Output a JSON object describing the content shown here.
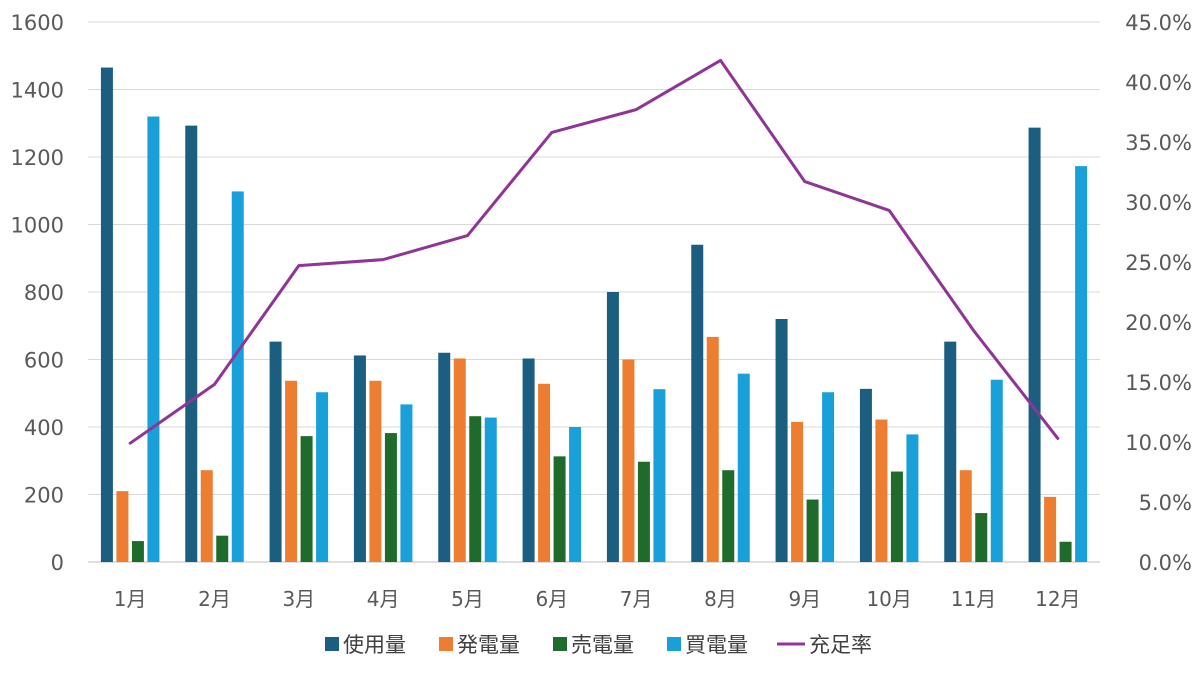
{
  "chart_data": {
    "type": "bar",
    "categories": [
      "1月",
      "2月",
      "3月",
      "4月",
      "5月",
      "6月",
      "7月",
      "8月",
      "9月",
      "10月",
      "11月",
      "12月"
    ],
    "series": [
      {
        "name": "使用量",
        "type": "bar",
        "axis": "left",
        "color": "#1B5E80",
        "values": [
          1465,
          1293,
          653,
          612,
          620,
          603,
          800,
          940,
          720,
          513,
          653,
          1287
        ]
      },
      {
        "name": "発電量",
        "type": "bar",
        "axis": "left",
        "color": "#ED7D31",
        "values": [
          210,
          272,
          537,
          537,
          603,
          528,
          600,
          667,
          415,
          422,
          272,
          193
        ]
      },
      {
        "name": "売電量",
        "type": "bar",
        "axis": "left",
        "color": "#1E6B2B",
        "values": [
          62,
          78,
          373,
          382,
          432,
          313,
          297,
          272,
          185,
          268,
          145,
          60
        ]
      },
      {
        "name": "買電量",
        "type": "bar",
        "axis": "left",
        "color": "#1AA0D8",
        "values": [
          1320,
          1098,
          503,
          467,
          428,
          400,
          512,
          558,
          503,
          378,
          540,
          1173
        ]
      },
      {
        "name": "充足率",
        "type": "line",
        "axis": "right",
        "color": "#8E3596",
        "values": [
          0.099,
          0.148,
          0.247,
          0.252,
          0.272,
          0.358,
          0.377,
          0.418,
          0.317,
          0.293,
          0.193,
          0.103
        ]
      }
    ],
    "left_axis": {
      "ylim": [
        0,
        1600
      ],
      "ticks": [
        "0",
        "200",
        "400",
        "600",
        "800",
        "1000",
        "1200",
        "1400",
        "1600"
      ]
    },
    "right_axis": {
      "ylim": [
        0,
        0.45
      ],
      "ticks": [
        "0.0%",
        "5.0%",
        "10.0%",
        "15.0%",
        "20.0%",
        "25.0%",
        "30.0%",
        "35.0%",
        "40.0%",
        "45.0%"
      ]
    },
    "grid": true,
    "legend_position": "bottom"
  }
}
